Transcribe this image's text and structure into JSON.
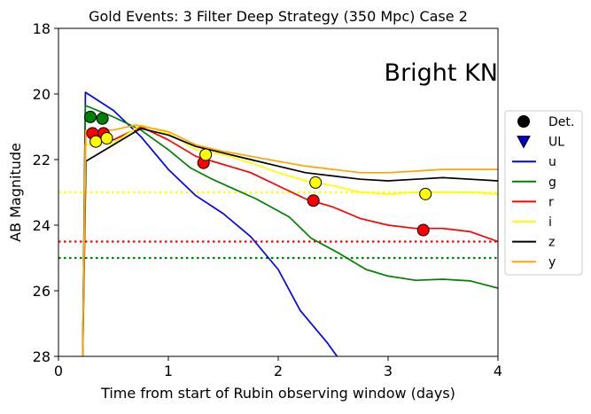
{
  "chart_data": {
    "type": "line",
    "title": "Gold Events: 3 Filter Deep Strategy (350 Mpc) Case 2",
    "xlabel": "Time from start of Rubin observing window (days)",
    "ylabel": "AB Magnitude",
    "annotation": "Bright KN",
    "xlim": [
      0,
      4
    ],
    "ylim": [
      28,
      18
    ],
    "y_inverted": true,
    "grid": false,
    "legend_position": "right",
    "x_ticks": [
      {
        "value": 0,
        "label": "0"
      },
      {
        "value": 1,
        "label": "1"
      },
      {
        "value": 2,
        "label": "2"
      },
      {
        "value": 3,
        "label": "3"
      },
      {
        "value": 4,
        "label": "4"
      }
    ],
    "y_ticks": [
      {
        "value": 18,
        "label": "18"
      },
      {
        "value": 20,
        "label": "20"
      },
      {
        "value": 22,
        "label": "22"
      },
      {
        "value": 24,
        "label": "24"
      },
      {
        "value": 26,
        "label": "26"
      },
      {
        "value": 28,
        "label": "28"
      }
    ],
    "series": [
      {
        "name": "u",
        "color": "#0000ff",
        "x": [
          0.22,
          0.245,
          0.5,
          0.75,
          1.0,
          1.25,
          1.5,
          1.75,
          2.0,
          2.2,
          2.45,
          2.6
        ],
        "y": [
          28.1,
          19.95,
          20.5,
          21.3,
          22.3,
          23.1,
          23.65,
          24.35,
          25.35,
          26.6,
          27.6,
          28.3
        ]
      },
      {
        "name": "g",
        "color": "#008000",
        "x": [
          0.22,
          0.245,
          0.5,
          0.75,
          1.0,
          1.2,
          1.4,
          1.6,
          1.8,
          2.1,
          2.3,
          2.55,
          2.8,
          3.0,
          3.25,
          3.5,
          3.75,
          4.0
        ],
        "y": [
          28.1,
          20.35,
          20.7,
          21.1,
          21.7,
          22.25,
          22.6,
          22.9,
          23.2,
          23.75,
          24.4,
          24.85,
          25.35,
          25.55,
          25.68,
          25.65,
          25.7,
          25.92
        ]
      },
      {
        "name": "r",
        "color": "#ff0000",
        "x": [
          0.22,
          0.245,
          0.5,
          0.75,
          1.0,
          1.25,
          1.5,
          1.75,
          2.0,
          2.25,
          2.5,
          2.75,
          3.0,
          3.25,
          3.5,
          3.75,
          4.0
        ],
        "y": [
          28.1,
          21.2,
          21.4,
          21.0,
          21.4,
          21.9,
          22.15,
          22.4,
          22.8,
          23.2,
          23.45,
          23.8,
          24.0,
          24.1,
          24.1,
          24.2,
          24.5
        ]
      },
      {
        "name": "i",
        "color": "#ffff00",
        "x": [
          0.22,
          0.245,
          0.5,
          0.75,
          1.0,
          1.25,
          1.5,
          1.75,
          2.0,
          2.25,
          2.5,
          2.75,
          3.0,
          3.25,
          3.5,
          3.75,
          4.0
        ],
        "y": [
          28.1,
          21.55,
          21.5,
          20.95,
          21.2,
          21.7,
          21.85,
          22.1,
          22.4,
          22.65,
          22.8,
          23.0,
          23.05,
          23.0,
          23.0,
          23.0,
          23.05
        ]
      },
      {
        "name": "z",
        "color": "#000000",
        "x": [
          0.22,
          0.25,
          0.5,
          0.75,
          1.0,
          1.25,
          1.5,
          1.75,
          2.0,
          2.25,
          2.5,
          2.75,
          3.0,
          3.25,
          3.5,
          3.75,
          4.0
        ],
        "y": [
          28.1,
          22.05,
          21.55,
          21.05,
          21.25,
          21.6,
          21.8,
          22.0,
          22.2,
          22.4,
          22.5,
          22.6,
          22.65,
          22.6,
          22.55,
          22.6,
          22.65
        ]
      },
      {
        "name": "y",
        "color": "#ffa500",
        "x": [
          0.22,
          0.25,
          0.5,
          0.7,
          1.0,
          1.25,
          1.5,
          1.75,
          2.0,
          2.25,
          2.5,
          2.75,
          3.0,
          3.25,
          3.5,
          3.75,
          4.0
        ],
        "y": [
          28.1,
          21.1,
          21.1,
          20.95,
          21.15,
          21.55,
          21.75,
          21.9,
          22.05,
          22.2,
          22.3,
          22.4,
          22.4,
          22.35,
          22.3,
          22.3,
          22.3
        ]
      }
    ],
    "detections": [
      {
        "filter": "g",
        "color": "#008000",
        "x": 0.29,
        "y": 20.7
      },
      {
        "filter": "g",
        "color": "#008000",
        "x": 0.4,
        "y": 20.75
      },
      {
        "filter": "r",
        "color": "#ff0000",
        "x": 0.31,
        "y": 21.2
      },
      {
        "filter": "r",
        "color": "#ff0000",
        "x": 0.41,
        "y": 21.2
      },
      {
        "filter": "r",
        "color": "#ff0000",
        "x": 1.32,
        "y": 22.1
      },
      {
        "filter": "r",
        "color": "#ff0000",
        "x": 2.32,
        "y": 23.25
      },
      {
        "filter": "r",
        "color": "#ff0000",
        "x": 3.32,
        "y": 24.15
      },
      {
        "filter": "i",
        "color": "#ffff00",
        "x": 0.34,
        "y": 21.45
      },
      {
        "filter": "i",
        "color": "#ffff00",
        "x": 0.44,
        "y": 21.35
      },
      {
        "filter": "i",
        "color": "#ffff00",
        "x": 1.34,
        "y": 21.85
      },
      {
        "filter": "i",
        "color": "#ffff00",
        "x": 2.34,
        "y": 22.7
      },
      {
        "filter": "i",
        "color": "#ffff00",
        "x": 3.34,
        "y": 23.05
      }
    ],
    "limit_lines": [
      {
        "filter": "i",
        "color": "#ffff00",
        "y": 23.0
      },
      {
        "filter": "r",
        "color": "#ff0000",
        "y": 24.5
      },
      {
        "filter": "g",
        "color": "#008000",
        "y": 25.0
      }
    ],
    "legend": [
      {
        "label": "Det.",
        "marker": "circle",
        "color": "#000000"
      },
      {
        "label": "UL",
        "marker": "triangle-down",
        "color": "#0000cc"
      },
      {
        "label": "u",
        "marker": "line",
        "color": "#0000ff"
      },
      {
        "label": "g",
        "marker": "line",
        "color": "#008000"
      },
      {
        "label": "r",
        "marker": "line",
        "color": "#ff0000"
      },
      {
        "label": "i",
        "marker": "line",
        "color": "#ffff00"
      },
      {
        "label": "z",
        "marker": "line",
        "color": "#000000"
      },
      {
        "label": "y",
        "marker": "line",
        "color": "#ffa500"
      }
    ]
  }
}
